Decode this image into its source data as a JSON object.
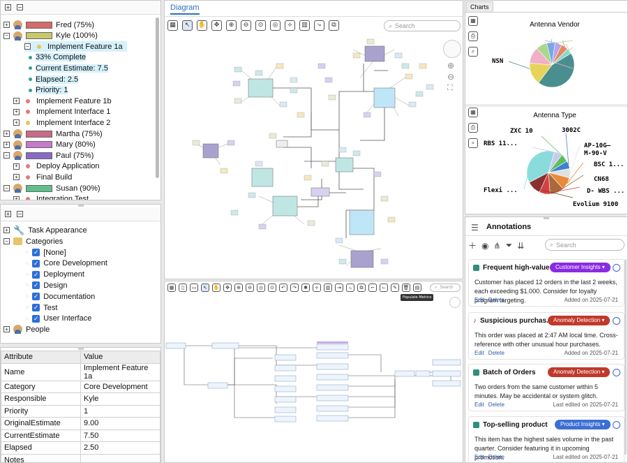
{
  "tree": {
    "rows": [
      {
        "label": "Fred (75%)",
        "type": "person",
        "bar": "#d46a6a"
      },
      {
        "label": "Kyle (100%)",
        "type": "person",
        "bar": "#c6c86a"
      },
      {
        "label": "Implement Feature 1a",
        "type": "task",
        "dot": "#e8c44e"
      },
      {
        "label": "33% Complete",
        "type": "attr"
      },
      {
        "label": "Current Estimate: 7.5",
        "type": "attr"
      },
      {
        "label": "Elapsed: 2.5",
        "type": "attr"
      },
      {
        "label": "Priority: 1",
        "type": "attr"
      },
      {
        "label": "Implement Feature 1b",
        "type": "task",
        "dot": "#e37a7a"
      },
      {
        "label": "Implement Interface 1",
        "type": "task",
        "dot": "#e37a7a"
      },
      {
        "label": "Implement Interface 2",
        "type": "task",
        "dot": "#e8c44e"
      },
      {
        "label": "Martha (75%)",
        "type": "person",
        "bar": "#c96a86"
      },
      {
        "label": "Mary (80%)",
        "type": "person",
        "bar": "#c77ac9"
      },
      {
        "label": "Paul (75%)",
        "type": "person",
        "bar": "#8a6ac9"
      },
      {
        "label": "Deploy Application",
        "type": "task",
        "dot": "#e37a7a"
      },
      {
        "label": "Final Build",
        "type": "task",
        "dot": "#e37a7a"
      },
      {
        "label": "Susan (90%)",
        "type": "person",
        "bar": "#5fbf8a"
      },
      {
        "label": "Integration Test",
        "type": "task",
        "dot": "#e37a7a"
      }
    ]
  },
  "categories": {
    "task_appearance": "Task Appearance",
    "categories_label": "Categories",
    "items": [
      "[None]",
      "Core Development",
      "Deployment",
      "Design",
      "Documentation",
      "Test",
      "User Interface"
    ],
    "people": "People"
  },
  "props": {
    "headers": [
      "Attribute",
      "Value"
    ],
    "rows": [
      [
        "Name",
        "Implement Feature 1a"
      ],
      [
        "Category",
        "Core Development"
      ],
      [
        "Responsible",
        "Kyle"
      ],
      [
        "Priority",
        "1"
      ],
      [
        "OriginalEstimate",
        "9.00"
      ],
      [
        "CurrentEstimate",
        "7.50"
      ],
      [
        "Elapsed",
        "2.50"
      ],
      [
        "Notes",
        ""
      ]
    ]
  },
  "diagram": {
    "tab": "Diagram",
    "search_placeholder": "Search",
    "mini_search_placeholder": "Search",
    "tooltip": "Populate Metrics"
  },
  "charts": {
    "tab": "Charts",
    "chart_data": [
      {
        "type": "pie",
        "title": "Antenna Vendor",
        "categories": [
          "NSN",
          "",
          "",
          "",
          "",
          "",
          "",
          ""
        ],
        "values": [
          44,
          16,
          12,
          8,
          6,
          5,
          5,
          4
        ],
        "colors": [
          "#4a8f8f",
          "#e8d35a",
          "#f0b0c8",
          "#a9d88a",
          "#7aa8e6",
          "#b9a6e8",
          "#e88a5a",
          "#8ed6d0"
        ]
      },
      {
        "type": "pie",
        "title": "Antenna Type",
        "categories": [
          "3002C",
          "AP-10G-M-90-V",
          "BSC 1...",
          "CN68",
          "D- WBS ...",
          "Evolium 9100",
          "Flexi ...",
          "RBS 11...",
          "ZXC 10"
        ],
        "values": [
          5,
          6,
          8,
          9,
          7,
          9,
          32,
          5,
          5
        ],
        "colors": [
          "#3f7fd6",
          "#e0e0e0",
          "#e88a3a",
          "#a86a3a",
          "#d64040",
          "#8a3030",
          "#8adcdc",
          "#c8c8f0",
          "#5ac05a"
        ]
      }
    ]
  },
  "annotations": {
    "title": "Annotations",
    "search_placeholder": "Search",
    "cards": [
      {
        "title": "Frequent high-value ...",
        "tag": "Customer Insights",
        "tag_color": "#8a2be2",
        "body": "Customer has placed 12 orders in the last 2 weeks, each exceeding $1.000. Consider for loyalty program targeting.",
        "edit": "Edit",
        "delete": "Delete",
        "meta": "Added on 2025-07-21"
      },
      {
        "title": "Suspicious purchas...",
        "tag": "Anomaly Detection",
        "tag_color": "#c0392b",
        "body": "This order was placed at 2:47 AM local time. Cross-reference with other unusual hour purchases.",
        "edit": "Edit",
        "delete": "Delete",
        "meta": "Added on 2025-07-21"
      },
      {
        "title": "Batch of Orders",
        "tag": "Anomaly Detection",
        "tag_color": "#c0392b",
        "body": "Two orders from the same customer within 5 minutes. May be accidental or system glitch.",
        "edit": "Edit",
        "delete": "Delete",
        "meta": "Last edited on 2025-07-21"
      },
      {
        "title": "Top-selling product",
        "tag": "Product Insights",
        "tag_color": "#3b6fd4",
        "body": "This item has the highest sales volume in the past quarter. Consider featuring it in upcoming promotion.",
        "edit": "Edit",
        "delete": "Delete",
        "meta": "Last edited on 2025-07-21"
      }
    ]
  }
}
